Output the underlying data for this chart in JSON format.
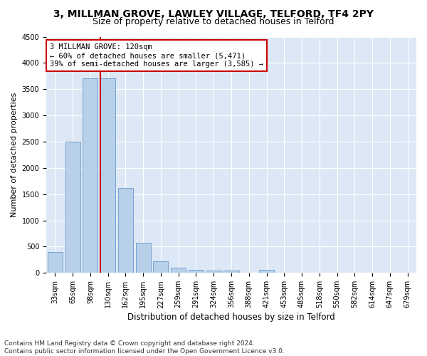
{
  "title1": "3, MILLMAN GROVE, LAWLEY VILLAGE, TELFORD, TF4 2PY",
  "title2": "Size of property relative to detached houses in Telford",
  "xlabel": "Distribution of detached houses by size in Telford",
  "ylabel": "Number of detached properties",
  "bar_labels": [
    "33sqm",
    "65sqm",
    "98sqm",
    "130sqm",
    "162sqm",
    "195sqm",
    "227sqm",
    "259sqm",
    "291sqm",
    "324sqm",
    "356sqm",
    "388sqm",
    "421sqm",
    "453sqm",
    "485sqm",
    "518sqm",
    "550sqm",
    "582sqm",
    "614sqm",
    "647sqm",
    "679sqm"
  ],
  "bar_values": [
    400,
    2500,
    3700,
    3700,
    1620,
    580,
    220,
    100,
    55,
    45,
    40,
    0,
    55,
    0,
    0,
    0,
    0,
    0,
    0,
    0,
    0
  ],
  "bar_color": "#b8d0ea",
  "bar_edge_color": "#6699cc",
  "annotation_text": "3 MILLMAN GROVE: 120sqm\n← 60% of detached houses are smaller (5,471)\n39% of semi-detached houses are larger (3,585) →",
  "annotation_box_color": "#ffffff",
  "annotation_box_edge": "#cc0000",
  "vline_color": "#cc0000",
  "ylim": [
    0,
    4500
  ],
  "yticks": [
    0,
    500,
    1000,
    1500,
    2000,
    2500,
    3000,
    3500,
    4000,
    4500
  ],
  "bg_color": "#dce8f5",
  "grid_color": "#ffffff",
  "footer": "Contains HM Land Registry data © Crown copyright and database right 2024.\nContains public sector information licensed under the Open Government Licence v3.0.",
  "title1_fontsize": 10,
  "title2_fontsize": 9,
  "xlabel_fontsize": 8.5,
  "ylabel_fontsize": 8,
  "tick_fontsize": 7,
  "annotation_fontsize": 7.5,
  "footer_fontsize": 6.5
}
